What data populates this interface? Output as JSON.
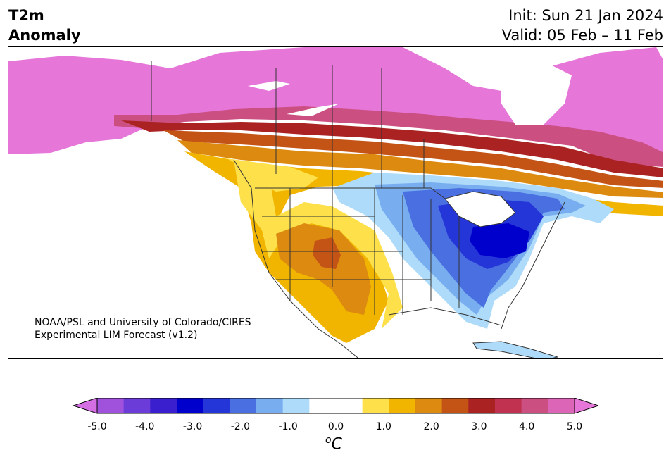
{
  "header": {
    "title_line1": "T2m",
    "title_line2": "Anomaly",
    "init": "Init: Sun 21 Jan 2024",
    "valid": "Valid: 05 Feb – 11 Feb"
  },
  "credit": {
    "line1": "NOAA/PSL and University of Colorado/CIRES",
    "line2": "Experimental LIM Forecast (v1.2)"
  },
  "colorbar": {
    "colors": [
      "#d36fe3",
      "#a052dd",
      "#6b3cd8",
      "#3a1fcf",
      "#0000cc",
      "#2536d8",
      "#4a6fe0",
      "#78aef0",
      "#aedbfa",
      "#ffffff",
      "#ffffff",
      "#fde04a",
      "#f1b500",
      "#dc8a10",
      "#c45316",
      "#aa2222",
      "#c03250",
      "#cc4f82",
      "#dc65b8",
      "#e677d9"
    ],
    "ticks": [
      "-5.0",
      "-4.0",
      "-3.0",
      "-2.0",
      "-1.0",
      "0.0",
      "1.0",
      "2.0",
      "3.0",
      "4.0",
      "5.0"
    ],
    "unit_symbol": "o",
    "unit_letter": "C"
  },
  "map": {
    "regions": [
      {
        "name": "northern-canada-alaska",
        "anomaly": "above +5.0",
        "color": "#e677d9"
      },
      {
        "name": "southern-canada-band",
        "anomaly": "+2.0 to +4.0",
        "color": "#aa2222"
      },
      {
        "name": "western-us",
        "anomaly": "+1.0 to +2.5",
        "color": "#f1b500"
      },
      {
        "name": "eastern-us",
        "anomaly": "-1.0 to -3.0",
        "color": "#4a6fe0"
      },
      {
        "name": "ohio-valley",
        "anomaly": "below -3.0",
        "color": "#0000cc"
      }
    ]
  }
}
